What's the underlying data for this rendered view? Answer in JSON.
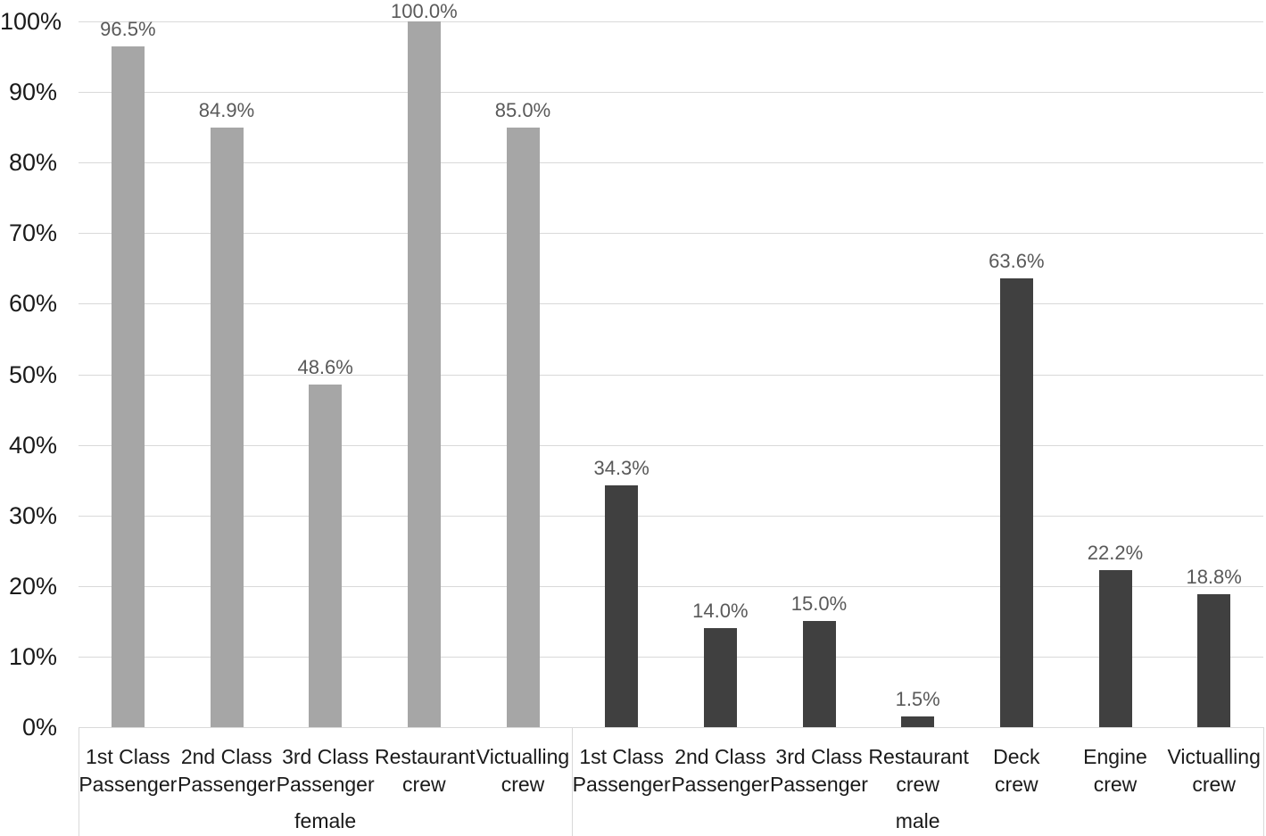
{
  "chart_data": {
    "type": "bar",
    "title": "",
    "xlabel": "",
    "ylabel": "",
    "ylim": [
      0,
      100
    ],
    "grid": true,
    "legend": "none",
    "y_ticks": [
      "0%",
      "10%",
      "20%",
      "30%",
      "40%",
      "50%",
      "60%",
      "70%",
      "80%",
      "90%",
      "100%"
    ],
    "groups": [
      {
        "label": "female",
        "bar_color": "#a6a6a6",
        "categories": [
          {
            "lines": [
              "1st Class",
              "Passenger"
            ],
            "value": 96.5,
            "data_label": "96.5%"
          },
          {
            "lines": [
              "2nd Class",
              "Passenger"
            ],
            "value": 84.9,
            "data_label": "84.9%"
          },
          {
            "lines": [
              "3rd Class",
              "Passenger"
            ],
            "value": 48.6,
            "data_label": "48.6%"
          },
          {
            "lines": [
              "Restaurant",
              "crew"
            ],
            "value": 100.0,
            "data_label": "100.0%"
          },
          {
            "lines": [
              "Victualling",
              "crew"
            ],
            "value": 85.0,
            "data_label": "85.0%"
          }
        ]
      },
      {
        "label": "male",
        "bar_color": "#404040",
        "categories": [
          {
            "lines": [
              "1st Class",
              "Passenger"
            ],
            "value": 34.3,
            "data_label": "34.3%"
          },
          {
            "lines": [
              "2nd Class",
              "Passenger"
            ],
            "value": 14.0,
            "data_label": "14.0%"
          },
          {
            "lines": [
              "3rd Class",
              "Passenger"
            ],
            "value": 15.0,
            "data_label": "15.0%"
          },
          {
            "lines": [
              "Restaurant",
              "crew"
            ],
            "value": 1.5,
            "data_label": "1.5%"
          },
          {
            "lines": [
              "Deck",
              "crew"
            ],
            "value": 63.6,
            "data_label": "63.6%"
          },
          {
            "lines": [
              "Engine",
              "crew"
            ],
            "value": 22.2,
            "data_label": "22.2%"
          },
          {
            "lines": [
              "Victualling",
              "crew"
            ],
            "value": 18.8,
            "data_label": "18.8%"
          }
        ]
      }
    ],
    "colors": {
      "female_bar": "#a6a6a6",
      "male_bar": "#404040",
      "gridline": "#d9d9d9",
      "axis_text": "#1a1a1a",
      "data_label_text": "#595959"
    }
  }
}
